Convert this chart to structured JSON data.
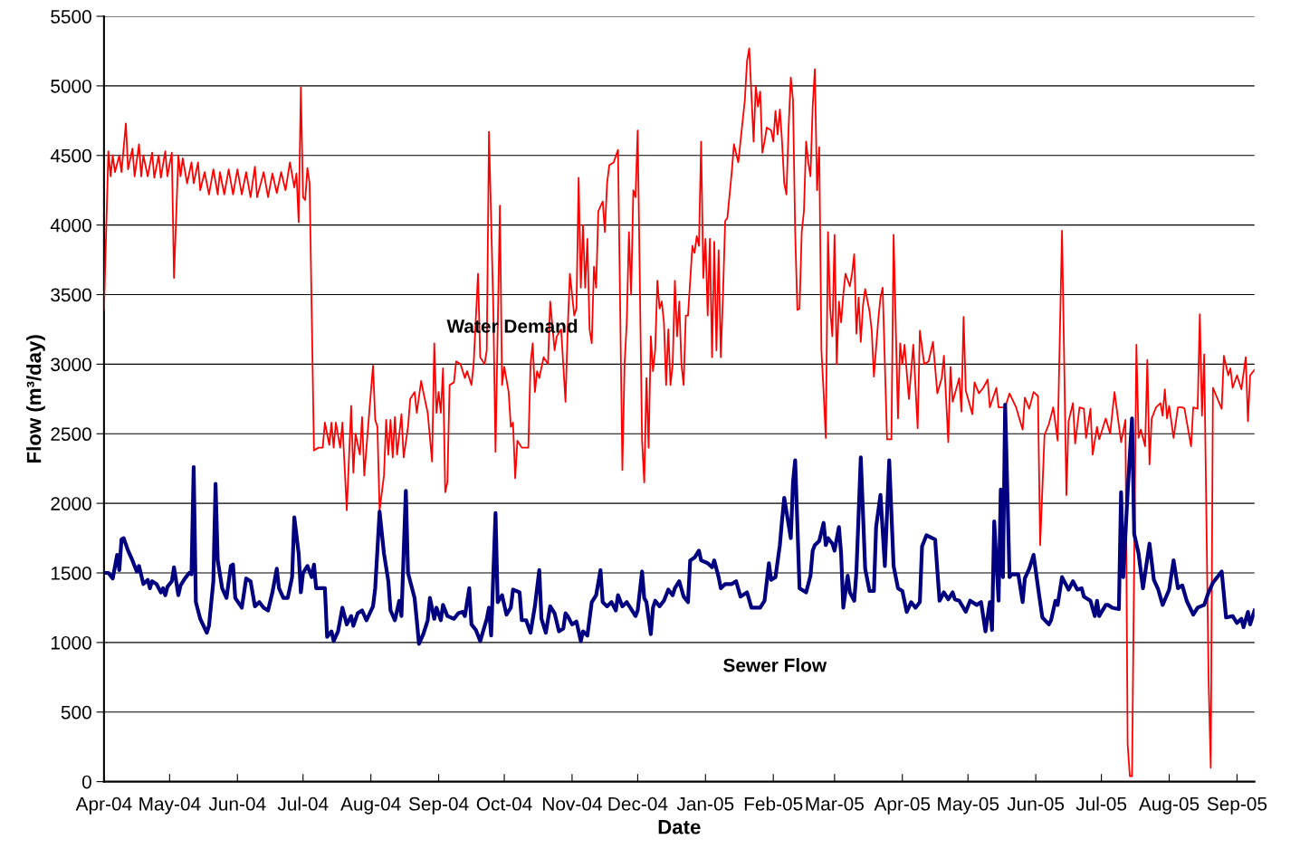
{
  "chart_data": {
    "type": "line",
    "xlabel": "Date",
    "ylabel": "Flow (m³/day)",
    "xlim": [
      "2004-04-01",
      "2005-09-09"
    ],
    "ylim": [
      0,
      5500
    ],
    "yticks": [
      0,
      500,
      1000,
      1500,
      2000,
      2500,
      3000,
      3500,
      4000,
      4500,
      5000,
      5500
    ],
    "xticks": [
      {
        "value": "2004-04-01",
        "label": "Apr-04"
      },
      {
        "value": "2004-05-01",
        "label": "May-04"
      },
      {
        "value": "2004-06-01",
        "label": "Jun-04"
      },
      {
        "value": "2004-07-01",
        "label": "Jul-04"
      },
      {
        "value": "2004-08-01",
        "label": "Aug-04"
      },
      {
        "value": "2004-09-01",
        "label": "Sep-04"
      },
      {
        "value": "2004-10-01",
        "label": "Oct-04"
      },
      {
        "value": "2004-11-01",
        "label": "Nov-04"
      },
      {
        "value": "2004-12-01",
        "label": "Dec-04"
      },
      {
        "value": "2005-01-01",
        "label": "Jan-05"
      },
      {
        "value": "2005-02-01",
        "label": "Feb-05"
      },
      {
        "value": "2005-03-01",
        "label": "Mar-05"
      },
      {
        "value": "2005-04-01",
        "label": "Apr-05"
      },
      {
        "value": "2005-05-01",
        "label": "May-05"
      },
      {
        "value": "2005-06-01",
        "label": "Jun-05"
      },
      {
        "value": "2005-07-01",
        "label": "Jul-05"
      },
      {
        "value": "2005-08-01",
        "label": "Aug-05"
      },
      {
        "value": "2005-09-01",
        "label": "Sep-05"
      }
    ],
    "grid": "y",
    "legend": false,
    "marker": "none",
    "line_style": "solid",
    "series": [
      {
        "name": "Water Demand",
        "color": "#ff0000",
        "x": [
          "2004-04-01",
          "2004-04-03",
          "2004-04-04",
          "2004-04-05",
          "2004-04-06",
          "2004-04-08",
          "2004-04-09",
          "2004-04-11",
          "2004-04-12",
          "2004-04-14",
          "2004-04-15",
          "2004-04-17",
          "2004-04-18",
          "2004-04-19",
          "2004-04-21",
          "2004-04-23",
          "2004-04-24",
          "2004-04-26",
          "2004-04-27",
          "2004-04-29",
          "2004-04-30",
          "2004-05-02",
          "2004-05-03",
          "2004-05-05",
          "2004-05-06",
          "2004-05-07",
          "2004-05-09",
          "2004-05-11",
          "2004-05-12",
          "2004-05-14",
          "2004-05-15",
          "2004-05-17",
          "2004-05-19",
          "2004-05-21",
          "2004-05-23",
          "2004-05-24",
          "2004-05-26",
          "2004-05-28",
          "2004-05-30",
          "2004-06-01",
          "2004-06-03",
          "2004-06-05",
          "2004-06-07",
          "2004-06-09",
          "2004-06-10",
          "2004-06-13",
          "2004-06-15",
          "2004-06-17",
          "2004-06-19",
          "2004-06-21",
          "2004-06-23",
          "2004-06-25",
          "2004-06-27",
          "2004-06-28",
          "2004-06-29",
          "2004-06-30",
          "2004-07-01",
          "2004-07-02",
          "2004-07-03",
          "2004-07-04",
          "2004-07-06",
          "2004-07-08",
          "2004-07-10",
          "2004-07-11",
          "2004-07-13",
          "2004-07-14",
          "2004-07-15",
          "2004-07-16",
          "2004-07-18",
          "2004-07-19",
          "2004-07-21",
          "2004-07-23",
          "2004-07-24",
          "2004-07-25",
          "2004-07-27",
          "2004-07-28",
          "2004-07-29",
          "2004-07-31",
          "2004-08-02",
          "2004-08-03",
          "2004-08-04",
          "2004-08-05",
          "2004-08-07",
          "2004-08-08",
          "2004-08-09",
          "2004-08-10",
          "2004-08-11",
          "2004-08-12",
          "2004-08-13",
          "2004-08-15",
          "2004-08-16",
          "2004-08-18",
          "2004-08-19",
          "2004-08-21",
          "2004-08-22",
          "2004-08-24",
          "2004-08-25",
          "2004-08-27",
          "2004-08-29",
          "2004-08-30",
          "2004-08-31",
          "2004-09-01",
          "2004-09-02",
          "2004-09-03",
          "2004-09-04",
          "2004-09-05",
          "2004-09-06",
          "2004-09-08",
          "2004-09-09",
          "2004-09-11",
          "2004-09-13",
          "2004-09-14",
          "2004-09-16",
          "2004-09-17",
          "2004-09-19",
          "2004-09-20",
          "2004-09-22",
          "2004-09-23",
          "2004-09-24",
          "2004-09-26",
          "2004-09-27",
          "2004-09-29",
          "2004-09-30",
          "2004-10-01",
          "2004-10-03",
          "2004-10-04",
          "2004-10-05",
          "2004-10-06",
          "2004-10-07",
          "2004-10-09",
          "2004-10-12",
          "2004-10-13",
          "2004-10-14",
          "2004-10-15",
          "2004-10-16",
          "2004-10-17",
          "2004-10-19",
          "2004-10-21",
          "2004-10-22",
          "2004-10-24",
          "2004-10-25",
          "2004-10-27",
          "2004-10-29",
          "2004-10-30",
          "2004-10-31",
          "2004-11-02",
          "2004-11-03",
          "2004-11-04",
          "2004-11-05",
          "2004-11-06",
          "2004-11-07",
          "2004-11-08",
          "2004-11-09",
          "2004-11-10",
          "2004-11-11",
          "2004-11-12",
          "2004-11-13",
          "2004-11-15",
          "2004-11-16",
          "2004-11-17",
          "2004-11-18",
          "2004-11-20",
          "2004-11-22",
          "2004-11-24",
          "2004-11-25",
          "2004-11-26",
          "2004-11-27",
          "2004-11-28",
          "2004-11-29",
          "2004-11-30",
          "2004-12-01",
          "2004-12-03",
          "2004-12-04",
          "2004-12-05",
          "2004-12-06",
          "2004-12-07",
          "2004-12-08",
          "2004-12-09",
          "2004-12-10",
          "2004-12-11",
          "2004-12-12",
          "2004-12-13",
          "2004-12-14",
          "2004-12-15",
          "2004-12-16",
          "2004-12-17",
          "2004-12-18",
          "2004-12-19",
          "2004-12-20",
          "2004-12-21",
          "2004-12-22",
          "2004-12-23",
          "2004-12-24",
          "2004-12-26",
          "2004-12-27",
          "2004-12-28",
          "2004-12-29",
          "2004-12-30",
          "2004-12-31",
          "2005-01-01",
          "2005-01-02",
          "2005-01-03",
          "2005-01-04",
          "2005-01-05",
          "2005-01-06",
          "2005-01-07",
          "2005-01-08",
          "2005-01-09",
          "2005-01-10",
          "2005-01-11",
          "2005-01-13",
          "2005-01-14",
          "2005-01-16",
          "2005-01-17",
          "2005-01-19",
          "2005-01-20",
          "2005-01-21",
          "2005-01-23",
          "2005-01-24",
          "2005-01-25",
          "2005-01-26",
          "2005-01-27",
          "2005-01-28",
          "2005-01-29",
          "2005-01-31",
          "2005-02-01",
          "2005-02-02",
          "2005-02-03",
          "2005-02-04",
          "2005-02-05",
          "2005-02-06",
          "2005-02-07",
          "2005-02-08",
          "2005-02-09",
          "2005-02-10",
          "2005-02-11",
          "2005-02-12",
          "2005-02-13",
          "2005-02-14",
          "2005-02-15",
          "2005-02-16",
          "2005-02-17",
          "2005-02-18",
          "2005-02-19",
          "2005-02-20",
          "2005-02-21",
          "2005-02-22",
          "2005-02-23",
          "2005-02-24",
          "2005-02-25",
          "2005-02-26",
          "2005-02-27",
          "2005-02-28",
          "2005-03-01",
          "2005-03-02",
          "2005-03-03",
          "2005-03-04",
          "2005-03-05",
          "2005-03-06",
          "2005-03-08",
          "2005-03-09",
          "2005-03-10",
          "2005-03-11",
          "2005-03-12",
          "2005-03-13",
          "2005-03-14",
          "2005-03-15",
          "2005-03-17",
          "2005-03-18",
          "2005-03-19",
          "2005-03-21",
          "2005-03-22",
          "2005-03-23",
          "2005-03-25",
          "2005-03-27",
          "2005-03-28",
          "2005-03-30",
          "2005-03-31",
          "2005-04-01",
          "2005-04-02",
          "2005-04-04",
          "2005-04-06",
          "2005-04-08",
          "2005-04-09",
          "2005-04-11",
          "2005-04-13",
          "2005-04-15",
          "2005-04-17",
          "2005-04-19",
          "2005-04-20",
          "2005-04-22",
          "2005-04-23",
          "2005-04-24",
          "2005-04-27",
          "2005-04-28",
          "2005-04-29",
          "2005-04-30",
          "2005-05-03",
          "2005-05-04",
          "2005-05-06",
          "2005-05-08",
          "2005-05-10",
          "2005-05-11",
          "2005-05-14",
          "2005-05-15",
          "2005-05-18",
          "2005-05-20",
          "2005-05-23",
          "2005-05-26",
          "2005-05-27",
          "2005-05-29",
          "2005-05-31",
          "2005-06-02",
          "2005-06-03",
          "2005-06-05",
          "2005-06-07",
          "2005-06-09",
          "2005-06-11",
          "2005-06-13",
          "2005-06-15",
          "2005-06-16",
          "2005-06-18",
          "2005-06-19",
          "2005-06-21",
          "2005-06-23",
          "2005-06-24",
          "2005-06-26",
          "2005-06-27",
          "2005-06-29",
          "2005-06-30",
          "2005-07-03",
          "2005-07-05",
          "2005-07-07",
          "2005-07-09",
          "2005-07-10",
          "2005-07-12",
          "2005-07-13",
          "2005-07-14",
          "2005-07-15",
          "2005-07-17",
          "2005-07-18",
          "2005-07-19",
          "2005-07-21",
          "2005-07-22",
          "2005-07-23",
          "2005-07-24",
          "2005-07-26",
          "2005-07-28",
          "2005-07-29",
          "2005-07-30",
          "2005-07-31",
          "2005-08-01",
          "2005-08-03",
          "2005-08-05",
          "2005-08-07",
          "2005-08-08",
          "2005-08-11",
          "2005-08-12",
          "2005-08-14",
          "2005-08-15",
          "2005-08-16",
          "2005-08-17",
          "2005-08-19",
          "2005-08-20",
          "2005-08-21",
          "2005-08-25",
          "2005-08-26",
          "2005-08-28",
          "2005-08-29",
          "2005-08-30",
          "2005-09-01",
          "2005-09-03",
          "2005-09-05",
          "2005-09-06",
          "2005-09-07",
          "2005-09-09"
        ],
        "values": [
          3390,
          4530,
          4350,
          4500,
          4380,
          4500,
          4380,
          4730,
          4400,
          4550,
          4350,
          4580,
          4350,
          4500,
          4350,
          4520,
          4340,
          4500,
          4340,
          4530,
          4350,
          4520,
          3620,
          4500,
          4350,
          4480,
          4300,
          4450,
          4300,
          4450,
          4250,
          4380,
          4220,
          4400,
          4220,
          4380,
          4220,
          4400,
          4220,
          4400,
          4220,
          4380,
          4200,
          4420,
          4200,
          4380,
          4200,
          4370,
          4230,
          4380,
          4250,
          4450,
          4270,
          4370,
          4020,
          4990,
          4200,
          4180,
          4410,
          4300,
          2380,
          2400,
          2400,
          2580,
          2420,
          2580,
          2400,
          2580,
          2400,
          2580,
          1950,
          2700,
          2220,
          2500,
          2350,
          2620,
          2200,
          2600,
          2990,
          2600,
          2550,
          1950,
          2200,
          2600,
          2350,
          2600,
          2330,
          2620,
          2350,
          2640,
          2330,
          2550,
          2750,
          2800,
          2650,
          2880,
          2800,
          2650,
          2300,
          3150,
          2650,
          2800,
          2650,
          2970,
          2080,
          2150,
          2850,
          2870,
          3020,
          3000,
          2900,
          2950,
          2850,
          3000,
          3650,
          3050,
          3000,
          3100,
          4670,
          3400,
          2370,
          4140,
          2850,
          2980,
          2800,
          2550,
          2580,
          2180,
          2450,
          2400,
          2400,
          3000,
          3150,
          2800,
          2950,
          2900,
          3050,
          3000,
          3450,
          3100,
          3200,
          3250,
          2730,
          3250,
          3650,
          3350,
          3400,
          4340,
          3550,
          4000,
          3550,
          3900,
          3250,
          3150,
          3700,
          3550,
          4100,
          4170,
          3950,
          4300,
          4430,
          4450,
          4540,
          2240,
          3000,
          3300,
          3950,
          3500,
          4250,
          4200,
          4680,
          2450,
          2150,
          2900,
          2400,
          3200,
          2950,
          3100,
          3600,
          3400,
          3450,
          3300,
          2850,
          3250,
          2850,
          3000,
          3600,
          3200,
          3450,
          3000,
          2850,
          3350,
          3350,
          3850,
          3800,
          3920,
          3850,
          4600,
          3620,
          3900,
          3350,
          3900,
          3050,
          3880,
          3100,
          3820,
          3050,
          3500,
          4030,
          4050,
          4380,
          4580,
          4450,
          4600,
          4900,
          5180,
          5270,
          4600,
          5000,
          4850,
          4960,
          4520,
          4600,
          4700,
          4680,
          4600,
          4820,
          4650,
          4830,
          4600,
          4300,
          4220,
          4700,
          5060,
          4900,
          3950,
          3390,
          3400,
          3950,
          4100,
          4600,
          4450,
          4350,
          4850,
          5120,
          4250,
          4560,
          3100,
          2800,
          2470,
          3950,
          3400,
          3200,
          3930,
          3000,
          3450,
          3300,
          3500,
          3650,
          3560,
          3650,
          3790,
          3220,
          3480,
          3160,
          3420,
          3540,
          3380,
          3240,
          2910,
          3320,
          3480,
          3550,
          2460,
          2460,
          3930,
          2610,
          3150,
          3000,
          3140,
          2750,
          3140,
          2540,
          3240,
          3000,
          3020,
          3160,
          2790,
          2900,
          3060,
          2440,
          2980,
          2730,
          2900,
          2660,
          3340,
          2810,
          2640,
          2870,
          2790,
          2830,
          2890,
          2690,
          2830,
          2690,
          2690,
          2790,
          2690,
          2530,
          2760,
          2680,
          2800,
          2770,
          1700,
          2490,
          2570,
          2690,
          2450,
          3960,
          2060,
          2590,
          2720,
          2430,
          2690,
          2680,
          2470,
          2680,
          2350,
          2550,
          2460,
          2610,
          2500,
          2800,
          2560,
          2440,
          2600,
          270,
          40,
          40,
          3140,
          2470,
          2530,
          2410,
          3030,
          2280,
          2610,
          2690,
          2720,
          2630,
          2820,
          2610,
          2700,
          2470,
          2690,
          2690,
          2680,
          2410,
          2690,
          2680,
          3360,
          2630,
          3070,
          740,
          100,
          2830,
          2680,
          3060,
          2920,
          2970,
          2830,
          2920,
          2820,
          3050,
          2590,
          2920,
          2960
        ]
      },
      {
        "name": "Sewer Flow",
        "color": "#000080",
        "x": [
          "2004-04-01",
          "2004-04-03",
          "2004-04-05",
          "2004-04-07",
          "2004-04-08",
          "2004-04-09",
          "2004-04-10",
          "2004-04-12",
          "2004-04-14",
          "2004-04-16",
          "2004-04-17",
          "2004-04-19",
          "2004-04-21",
          "2004-04-22",
          "2004-04-23",
          "2004-04-25",
          "2004-04-27",
          "2004-04-28",
          "2004-04-29",
          "2004-04-30",
          "2004-05-02",
          "2004-05-03",
          "2004-05-05",
          "2004-05-06",
          "2004-05-08",
          "2004-05-10",
          "2004-05-11",
          "2004-05-12",
          "2004-05-13",
          "2004-05-15",
          "2004-05-18",
          "2004-05-19",
          "2004-05-21",
          "2004-05-22",
          "2004-05-23",
          "2004-05-25",
          "2004-05-27",
          "2004-05-29",
          "2004-05-30",
          "2004-05-31",
          "2004-06-03",
          "2004-06-05",
          "2004-06-07",
          "2004-06-09",
          "2004-06-11",
          "2004-06-13",
          "2004-06-15",
          "2004-06-17",
          "2004-06-19",
          "2004-06-20",
          "2004-06-22",
          "2004-06-24",
          "2004-06-26",
          "2004-06-27",
          "2004-06-29",
          "2004-06-30",
          "2004-07-01",
          "2004-07-03",
          "2004-07-05",
          "2004-07-06",
          "2004-07-07",
          "2004-07-11",
          "2004-07-12",
          "2004-07-14",
          "2004-07-15",
          "2004-07-17",
          "2004-07-19",
          "2004-07-21",
          "2004-07-23",
          "2004-07-24",
          "2004-07-26",
          "2004-07-28",
          "2004-07-30",
          "2004-08-02",
          "2004-08-03",
          "2004-08-05",
          "2004-08-07",
          "2004-08-09",
          "2004-08-10",
          "2004-08-12",
          "2004-08-14",
          "2004-08-15",
          "2004-08-17",
          "2004-08-18",
          "2004-08-21",
          "2004-08-22",
          "2004-08-23",
          "2004-08-25",
          "2004-08-27",
          "2004-08-28",
          "2004-08-30",
          "2004-08-31",
          "2004-09-02",
          "2004-09-03",
          "2004-09-05",
          "2004-09-08",
          "2004-09-10",
          "2004-09-12",
          "2004-09-13",
          "2004-09-15",
          "2004-09-16",
          "2004-09-18",
          "2004-09-20",
          "2004-09-23",
          "2004-09-24",
          "2004-09-25",
          "2004-09-27",
          "2004-09-28",
          "2004-09-30",
          "2004-10-02",
          "2004-10-04",
          "2004-10-05",
          "2004-10-08",
          "2004-10-09",
          "2004-10-11",
          "2004-10-13",
          "2004-10-15",
          "2004-10-17",
          "2004-10-18",
          "2004-10-20",
          "2004-10-22",
          "2004-10-24",
          "2004-10-26",
          "2004-10-28",
          "2004-10-29",
          "2004-10-30",
          "2004-11-01",
          "2004-11-03",
          "2004-11-05",
          "2004-11-06",
          "2004-11-08",
          "2004-11-10",
          "2004-11-12",
          "2004-11-14",
          "2004-11-15",
          "2004-11-17",
          "2004-11-19",
          "2004-11-21",
          "2004-11-22",
          "2004-11-24",
          "2004-11-26",
          "2004-11-28",
          "2004-11-30",
          "2004-12-01",
          "2004-12-03",
          "2004-12-04",
          "2004-12-05",
          "2004-12-07",
          "2004-12-08",
          "2004-12-09",
          "2004-12-11",
          "2004-12-13",
          "2004-12-15",
          "2004-12-17",
          "2004-12-18",
          "2004-12-20",
          "2004-12-22",
          "2004-12-24",
          "2004-12-25",
          "2004-12-27",
          "2004-12-29",
          "2004-12-30",
          "2005-01-02",
          "2005-01-04",
          "2005-01-05",
          "2005-01-07",
          "2005-01-08",
          "2005-01-10",
          "2005-01-13",
          "2005-01-15",
          "2005-01-17",
          "2005-01-20",
          "2005-01-22",
          "2005-01-26",
          "2005-01-28",
          "2005-01-30",
          "2005-01-31",
          "2005-02-02",
          "2005-02-04",
          "2005-02-05",
          "2005-02-06",
          "2005-02-09",
          "2005-02-10",
          "2005-02-11",
          "2005-02-13",
          "2005-02-15",
          "2005-02-16",
          "2005-02-18",
          "2005-02-19",
          "2005-02-20",
          "2005-02-22",
          "2005-02-24",
          "2005-02-25",
          "2005-02-26",
          "2005-02-28",
          "2005-03-01",
          "2005-03-03",
          "2005-03-04",
          "2005-03-05",
          "2005-03-07",
          "2005-03-08",
          "2005-03-10",
          "2005-03-11",
          "2005-03-13",
          "2005-03-15",
          "2005-03-17",
          "2005-03-19",
          "2005-03-20",
          "2005-03-22",
          "2005-03-24",
          "2005-03-26",
          "2005-03-28",
          "2005-03-30",
          "2005-04-01",
          "2005-04-03",
          "2005-04-05",
          "2005-04-07",
          "2005-04-09",
          "2005-04-10",
          "2005-04-12",
          "2005-04-16",
          "2005-04-18",
          "2005-04-20",
          "2005-04-22",
          "2005-04-24",
          "2005-04-25",
          "2005-04-27",
          "2005-04-30",
          "2005-05-02",
          "2005-05-05",
          "2005-05-07",
          "2005-05-09",
          "2005-05-11",
          "2005-05-12",
          "2005-05-13",
          "2005-05-15",
          "2005-05-16",
          "2005-05-17",
          "2005-05-18",
          "2005-05-20",
          "2005-05-21",
          "2005-05-24",
          "2005-05-26",
          "2005-05-27",
          "2005-05-29",
          "2005-05-31",
          "2005-06-02",
          "2005-06-04",
          "2005-06-07",
          "2005-06-08",
          "2005-06-10",
          "2005-06-11",
          "2005-06-13",
          "2005-06-15",
          "2005-06-16",
          "2005-06-18",
          "2005-06-20",
          "2005-06-22",
          "2005-06-23",
          "2005-06-26",
          "2005-06-28",
          "2005-06-29",
          "2005-06-30",
          "2005-07-03",
          "2005-07-04",
          "2005-07-06",
          "2005-07-09",
          "2005-07-10",
          "2005-07-11",
          "2005-07-13",
          "2005-07-15",
          "2005-07-16",
          "2005-07-18",
          "2005-07-20",
          "2005-07-23",
          "2005-07-25",
          "2005-07-27",
          "2005-07-29",
          "2005-08-01",
          "2005-08-03",
          "2005-08-05",
          "2005-08-07",
          "2005-08-09",
          "2005-08-12",
          "2005-08-14",
          "2005-08-17",
          "2005-08-19",
          "2005-08-21",
          "2005-08-25",
          "2005-08-27",
          "2005-08-30",
          "2005-09-01",
          "2005-09-03",
          "2005-09-04",
          "2005-09-06",
          "2005-09-07",
          "2005-09-09"
        ],
        "values": [
          1500,
          1500,
          1460,
          1630,
          1520,
          1740,
          1750,
          1660,
          1590,
          1510,
          1550,
          1420,
          1450,
          1390,
          1440,
          1420,
          1360,
          1390,
          1340,
          1400,
          1440,
          1540,
          1340,
          1410,
          1460,
          1500,
          1490,
          2260,
          1290,
          1170,
          1070,
          1120,
          1440,
          2140,
          1590,
          1390,
          1320,
          1550,
          1560,
          1320,
          1250,
          1460,
          1440,
          1260,
          1290,
          1250,
          1230,
          1360,
          1530,
          1390,
          1320,
          1320,
          1470,
          1900,
          1640,
          1360,
          1500,
          1550,
          1470,
          1560,
          1390,
          1390,
          1040,
          1080,
          1010,
          1080,
          1250,
          1130,
          1190,
          1120,
          1210,
          1230,
          1160,
          1260,
          1390,
          1940,
          1640,
          1440,
          1230,
          1160,
          1300,
          1190,
          2090,
          1500,
          1320,
          1160,
          990,
          1060,
          1160,
          1320,
          1170,
          1250,
          1160,
          1270,
          1190,
          1170,
          1210,
          1220,
          1190,
          1390,
          1130,
          1090,
          1010,
          1170,
          1250,
          1050,
          1930,
          1290,
          1340,
          1200,
          1250,
          1380,
          1360,
          1160,
          1160,
          1070,
          1260,
          1520,
          1170,
          1070,
          1260,
          1210,
          1080,
          1100,
          1210,
          1190,
          1130,
          1150,
          1010,
          1080,
          1050,
          1290,
          1340,
          1520,
          1290,
          1260,
          1290,
          1230,
          1340,
          1260,
          1290,
          1240,
          1190,
          1230,
          1510,
          1320,
          1290,
          1060,
          1250,
          1300,
          1260,
          1300,
          1380,
          1340,
          1390,
          1440,
          1330,
          1290,
          1590,
          1610,
          1660,
          1590,
          1570,
          1540,
          1590,
          1470,
          1390,
          1420,
          1420,
          1440,
          1330,
          1360,
          1250,
          1250,
          1300,
          1570,
          1450,
          1470,
          1700,
          1880,
          2040,
          1750,
          2150,
          2310,
          1390,
          1370,
          1360,
          1480,
          1660,
          1700,
          1730,
          1860,
          1700,
          1750,
          1710,
          1660,
          1830,
          1640,
          1250,
          1480,
          1360,
          1300,
          1510,
          2330,
          1530,
          1370,
          1370,
          1830,
          2060,
          1550,
          2310,
          1550,
          1390,
          1370,
          1220,
          1290,
          1250,
          1290,
          1690,
          1770,
          1740,
          1300,
          1360,
          1310,
          1360,
          1310,
          1300,
          1220,
          1300,
          1270,
          1290,
          1080,
          1290,
          1090,
          1870,
          1300,
          2100,
          1470,
          2710,
          1470,
          1490,
          1490,
          1290,
          1460,
          1530,
          1630,
          1400,
          1180,
          1130,
          1160,
          1300,
          1270,
          1470,
          1410,
          1380,
          1440,
          1380,
          1390,
          1330,
          1300,
          1190,
          1300,
          1190,
          1270,
          1270,
          1250,
          1240,
          2080,
          1470,
          2080,
          2610,
          1780,
          1640,
          1390,
          1710,
          1450,
          1380,
          1270,
          1380,
          1590,
          1390,
          1410,
          1300,
          1200,
          1250,
          1270,
          1360,
          1430,
          1510,
          1180,
          1190,
          1140,
          1170,
          1110,
          1220,
          1130,
          1230
        ]
      }
    ]
  }
}
